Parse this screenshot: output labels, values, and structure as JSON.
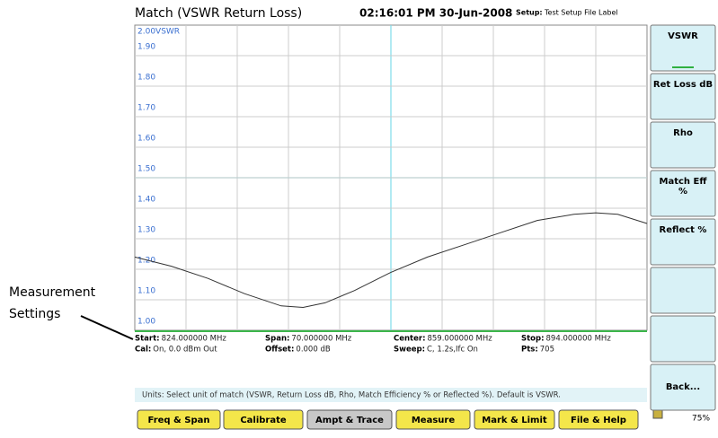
{
  "header": {
    "title": "Match (VSWR  Return Loss)",
    "time": "02:16:01 PM 30-Jun-2008",
    "setup_label": "Setup:",
    "setup_value": "Test Setup File Label"
  },
  "chart_data": {
    "type": "line",
    "xlim": [
      824,
      894
    ],
    "ylim": [
      1,
      2
    ],
    "yticks": [
      {
        "value": 2,
        "label": "2.00VSWR"
      },
      {
        "value": 1.9,
        "label": "1.90"
      },
      {
        "value": 1.8,
        "label": "1.80"
      },
      {
        "value": 1.7,
        "label": "1.70"
      },
      {
        "value": 1.6,
        "label": "1.60"
      },
      {
        "value": 1.5,
        "label": "1.50"
      },
      {
        "value": 1.4,
        "label": "1.40"
      },
      {
        "value": 1.3,
        "label": "1.30"
      },
      {
        "value": 1.2,
        "label": "1.20"
      },
      {
        "value": 1.1,
        "label": "1.10"
      },
      {
        "value": 1,
        "label": "1.00"
      }
    ],
    "grid": true,
    "series": [
      {
        "color": "#333333",
        "x": [
          824,
          829,
          834,
          839,
          844,
          847,
          850,
          854,
          859,
          864,
          869,
          874,
          879,
          884,
          887,
          890,
          894
        ],
        "values": [
          1.24,
          1.21,
          1.17,
          1.12,
          1.08,
          1.075,
          1.09,
          1.13,
          1.19,
          1.24,
          1.28,
          1.32,
          1.36,
          1.38,
          1.385,
          1.38,
          1.35
        ]
      }
    ]
  },
  "settings": [
    [
      [
        "Start:",
        "824.000000 MHz"
      ],
      [
        "Span:",
        "70.000000 MHz"
      ],
      [
        "Center:",
        "859.000000 MHz"
      ],
      [
        "Stop:",
        "894.000000 MHz"
      ]
    ],
    [
      [
        "Cal:",
        "On, 0.0 dBm Out"
      ],
      [
        "Offset:",
        "0.000 dB"
      ],
      [
        "Sweep:",
        "C,  1.2s,Ifc On"
      ],
      [
        "Pts:",
        "705"
      ]
    ]
  ],
  "softkeys": [
    "VSWR",
    "Ret Loss dB",
    "Rho",
    "Match Eff %",
    "Reflect %",
    "",
    "",
    "Back..."
  ],
  "status": "Units: Select unit of match (VSWR, Return Loss dB, Rho, Match Efficiency % or Reflected %). Default is VSWR.",
  "menu": [
    "Freq & Span",
    "Calibrate",
    "Ampt & Trace",
    "Measure",
    "Mark & Limit",
    "File & Help"
  ],
  "battery": "75%",
  "annotation": [
    "Measurement",
    "Settings"
  ]
}
